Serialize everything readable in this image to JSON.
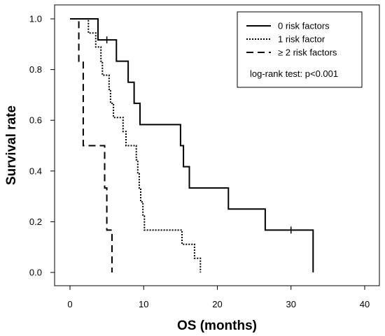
{
  "chart_data": {
    "type": "line",
    "subtype": "kaplan-meier step",
    "xlabel": "OS (months)",
    "ylabel": "Survival rate",
    "xlim": [
      0,
      40
    ],
    "ylim": [
      0.0,
      1.0
    ],
    "x_ticks": [
      0,
      10,
      20,
      30,
      40
    ],
    "y_ticks": [
      0.0,
      0.2,
      0.4,
      0.6,
      0.8,
      1.0
    ],
    "x_tick_labels": [
      "0",
      "10",
      "20",
      "30",
      "40"
    ],
    "y_tick_labels": [
      "0.0",
      "0.2",
      "0.4",
      "0.6",
      "0.8",
      "1.0"
    ],
    "grid": false,
    "legend_position": "top-right",
    "annotation": "log-rank test: p<0.001",
    "series": [
      {
        "name": "0 risk factors",
        "dash": "solid",
        "points": [
          [
            0,
            1.0
          ],
          [
            3.8,
            1.0
          ],
          [
            3.8,
            0.917
          ],
          [
            6.3,
            0.917
          ],
          [
            6.3,
            0.833
          ],
          [
            7.9,
            0.833
          ],
          [
            7.9,
            0.75
          ],
          [
            8.7,
            0.75
          ],
          [
            8.7,
            0.667
          ],
          [
            9.5,
            0.667
          ],
          [
            9.5,
            0.583
          ],
          [
            15.0,
            0.583
          ],
          [
            15.0,
            0.5
          ],
          [
            15.4,
            0.5
          ],
          [
            15.4,
            0.417
          ],
          [
            16.2,
            0.417
          ],
          [
            16.2,
            0.333
          ],
          [
            21.5,
            0.333
          ],
          [
            21.5,
            0.25
          ],
          [
            26.5,
            0.25
          ],
          [
            26.5,
            0.167
          ],
          [
            33.0,
            0.167
          ],
          [
            33.0,
            0.0
          ]
        ],
        "censored": [
          [
            5.0,
            0.917
          ],
          [
            30.0,
            0.167
          ]
        ]
      },
      {
        "name": "1 risk factor",
        "dash": "dotted",
        "points": [
          [
            0,
            1.0
          ],
          [
            2.5,
            1.0
          ],
          [
            2.5,
            0.944
          ],
          [
            3.5,
            0.944
          ],
          [
            3.5,
            0.889
          ],
          [
            4.2,
            0.889
          ],
          [
            4.2,
            0.833
          ],
          [
            4.4,
            0.833
          ],
          [
            4.4,
            0.778
          ],
          [
            5.3,
            0.778
          ],
          [
            5.3,
            0.722
          ],
          [
            5.5,
            0.722
          ],
          [
            5.5,
            0.667
          ],
          [
            5.9,
            0.667
          ],
          [
            5.9,
            0.611
          ],
          [
            7.2,
            0.611
          ],
          [
            7.2,
            0.556
          ],
          [
            7.6,
            0.556
          ],
          [
            7.6,
            0.5
          ],
          [
            9.0,
            0.5
          ],
          [
            9.0,
            0.444
          ],
          [
            9.2,
            0.444
          ],
          [
            9.2,
            0.389
          ],
          [
            9.4,
            0.389
          ],
          [
            9.4,
            0.333
          ],
          [
            9.6,
            0.333
          ],
          [
            9.6,
            0.278
          ],
          [
            9.9,
            0.278
          ],
          [
            9.9,
            0.222
          ],
          [
            10.1,
            0.222
          ],
          [
            10.1,
            0.167
          ],
          [
            15.2,
            0.167
          ],
          [
            15.2,
            0.111
          ],
          [
            16.9,
            0.111
          ],
          [
            16.9,
            0.056
          ],
          [
            17.7,
            0.056
          ],
          [
            17.7,
            0.0
          ]
        ],
        "censored": []
      },
      {
        "name": "≥ 2 risk factors",
        "dash": "dashed",
        "points": [
          [
            0,
            1.0
          ],
          [
            1.2,
            1.0
          ],
          [
            1.2,
            0.833
          ],
          [
            1.8,
            0.833
          ],
          [
            1.8,
            0.5
          ],
          [
            4.7,
            0.5
          ],
          [
            4.7,
            0.333
          ],
          [
            5.0,
            0.333
          ],
          [
            5.0,
            0.167
          ],
          [
            5.7,
            0.167
          ],
          [
            5.7,
            0.0
          ]
        ],
        "censored": []
      }
    ]
  }
}
